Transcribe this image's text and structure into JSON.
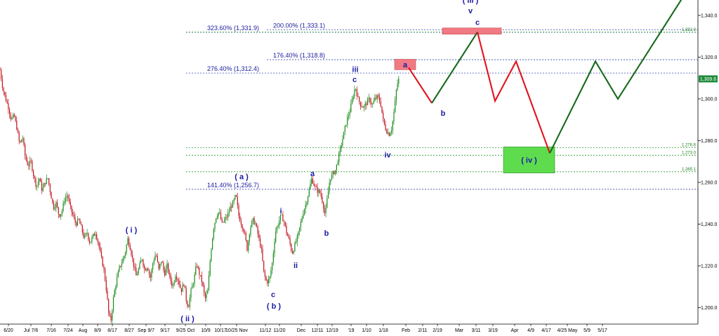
{
  "chart_data": {
    "type": "line",
    "ylim": [
      1185,
      1350
    ],
    "y_ticks": [
      "1,200.0",
      "1,220.0",
      "1,240.0",
      "1,260.0",
      "1,280.0",
      "1,300.0",
      "1,320.0",
      "1,340.0"
    ],
    "y_tick_values": [
      1200,
      1220,
      1240,
      1260,
      1280,
      1300,
      1320,
      1340
    ],
    "x_ticks": [
      "6/20",
      "Jul 7/6",
      "7/16",
      "7/24",
      "Aug",
      "8/9",
      "8/17",
      "8/27",
      "Sep 9/7",
      "9/17",
      "9/25 Oct",
      "10/9",
      "10/17",
      "10/25 Nov",
      "11/12",
      "11/20",
      "Dec",
      "12/11",
      "12/19",
      "'19",
      "1/10",
      "1/18",
      "Feb",
      "2/11",
      "2/19",
      "Mar",
      "3/11",
      "3/19",
      "Apr",
      "4/9",
      "4/17",
      "4/25 May",
      "5/9",
      "5/17"
    ],
    "last_price": "1,309.6",
    "price_history": [
      [
        0,
        1314
      ],
      [
        4,
        1305
      ],
      [
        8,
        1300
      ],
      [
        12,
        1296
      ],
      [
        16,
        1290
      ],
      [
        20,
        1292
      ],
      [
        24,
        1286
      ],
      [
        28,
        1278
      ],
      [
        32,
        1282
      ],
      [
        36,
        1272
      ],
      [
        40,
        1268
      ],
      [
        44,
        1270
      ],
      [
        48,
        1263
      ],
      [
        52,
        1258
      ],
      [
        56,
        1262
      ],
      [
        60,
        1256
      ],
      [
        64,
        1260
      ],
      [
        68,
        1262
      ],
      [
        72,
        1255
      ],
      [
        76,
        1248
      ],
      [
        80,
        1250
      ],
      [
        84,
        1244
      ],
      [
        88,
        1246
      ],
      [
        92,
        1252
      ],
      [
        96,
        1254
      ],
      [
        100,
        1248
      ],
      [
        104,
        1244
      ],
      [
        108,
        1240
      ],
      [
        112,
        1242
      ],
      [
        116,
        1238
      ],
      [
        120,
        1233
      ],
      [
        124,
        1236
      ],
      [
        128,
        1231
      ],
      [
        132,
        1234
      ],
      [
        136,
        1236
      ],
      [
        140,
        1231
      ],
      [
        144,
        1224
      ],
      [
        148,
        1218
      ],
      [
        152,
        1207
      ],
      [
        155,
        1196
      ],
      [
        158,
        1194
      ],
      [
        162,
        1206
      ],
      [
        166,
        1213
      ],
      [
        170,
        1219
      ],
      [
        174,
        1222
      ],
      [
        178,
        1226
      ],
      [
        182,
        1233
      ],
      [
        186,
        1228
      ],
      [
        190,
        1221
      ],
      [
        194,
        1215
      ],
      [
        198,
        1219
      ],
      [
        202,
        1224
      ],
      [
        206,
        1218
      ],
      [
        210,
        1220
      ],
      [
        214,
        1214
      ],
      [
        218,
        1222
      ],
      [
        222,
        1226
      ],
      [
        226,
        1218
      ],
      [
        230,
        1223
      ],
      [
        234,
        1216
      ],
      [
        238,
        1220
      ],
      [
        242,
        1214
      ],
      [
        246,
        1210
      ],
      [
        250,
        1216
      ],
      [
        254,
        1213
      ],
      [
        258,
        1208
      ],
      [
        262,
        1212
      ],
      [
        265,
        1204
      ],
      [
        268,
        1200
      ],
      [
        272,
        1208
      ],
      [
        276,
        1213
      ],
      [
        280,
        1221
      ],
      [
        284,
        1216
      ],
      [
        288,
        1212
      ],
      [
        292,
        1204
      ],
      [
        296,
        1208
      ],
      [
        300,
        1226
      ],
      [
        304,
        1238
      ],
      [
        308,
        1244
      ],
      [
        312,
        1246
      ],
      [
        316,
        1240
      ],
      [
        320,
        1242
      ],
      [
        324,
        1244
      ],
      [
        328,
        1248
      ],
      [
        332,
        1250
      ],
      [
        336,
        1254
      ],
      [
        340,
        1244
      ],
      [
        344,
        1240
      ],
      [
        348,
        1236
      ],
      [
        352,
        1228
      ],
      [
        356,
        1238
      ],
      [
        360,
        1242
      ],
      [
        364,
        1240
      ],
      [
        368,
        1234
      ],
      [
        372,
        1228
      ],
      [
        376,
        1216
      ],
      [
        380,
        1212
      ],
      [
        384,
        1214
      ],
      [
        388,
        1222
      ],
      [
        392,
        1236
      ],
      [
        396,
        1240
      ],
      [
        400,
        1244
      ],
      [
        404,
        1242
      ],
      [
        408,
        1236
      ],
      [
        412,
        1232
      ],
      [
        416,
        1226
      ],
      [
        420,
        1230
      ],
      [
        424,
        1234
      ],
      [
        428,
        1240
      ],
      [
        432,
        1246
      ],
      [
        436,
        1250
      ],
      [
        440,
        1256
      ],
      [
        444,
        1262
      ],
      [
        448,
        1258
      ],
      [
        452,
        1256
      ],
      [
        456,
        1255
      ],
      [
        460,
        1250
      ],
      [
        463,
        1244
      ],
      [
        466,
        1252
      ],
      [
        470,
        1262
      ],
      [
        474,
        1264
      ],
      [
        478,
        1266
      ],
      [
        482,
        1272
      ],
      [
        486,
        1278
      ],
      [
        490,
        1284
      ],
      [
        494,
        1290
      ],
      [
        498,
        1294
      ],
      [
        502,
        1300
      ],
      [
        506,
        1306
      ],
      [
        510,
        1300
      ],
      [
        514,
        1297
      ],
      [
        518,
        1296
      ],
      [
        522,
        1298
      ],
      [
        526,
        1300
      ],
      [
        530,
        1297
      ],
      [
        534,
        1300
      ],
      [
        538,
        1301
      ],
      [
        542,
        1298
      ],
      [
        546,
        1289
      ],
      [
        550,
        1285
      ],
      [
        554,
        1283
      ],
      [
        558,
        1286
      ],
      [
        562,
        1296
      ],
      [
        565,
        1306
      ],
      [
        568,
        1309.6
      ]
    ],
    "projection": [
      {
        "color": "#e0141e",
        "points": [
          [
            582,
            1315
          ],
          [
            615,
            1298
          ]
        ]
      },
      {
        "color": "#17681b",
        "points": [
          [
            615,
            1298
          ],
          [
            680,
            1332
          ]
        ]
      },
      {
        "color": "#e0141e",
        "points": [
          [
            680,
            1332
          ],
          [
            705,
            1299
          ],
          [
            735,
            1318
          ],
          [
            783,
            1274
          ]
        ]
      },
      {
        "color": "#17681b",
        "points": [
          [
            783,
            1274
          ],
          [
            848,
            1318
          ],
          [
            880,
            1300
          ],
          [
            975,
            1350
          ]
        ]
      }
    ],
    "fib_levels": [
      {
        "label": "323.60% (1,331.9)",
        "value": 1331.9,
        "x_start": 265,
        "label_x": 332,
        "color": "#3a4ab4"
      },
      {
        "label": "200.00% (1,333.1)",
        "value": 1333.1,
        "x_start": 380,
        "label_x": 426,
        "color": "#3a4ab4"
      },
      {
        "label": "176.40% (1,318.8)",
        "value": 1318.8,
        "x_start": 380,
        "label_x": 426,
        "color": "#3a4ab4"
      },
      {
        "label": "276.40% (1,312.4)",
        "value": 1312.4,
        "x_start": 265,
        "label_x": 332,
        "color": "#3a4ab4"
      },
      {
        "label": "141.40% (1,256.7)",
        "value": 1256.7,
        "x_start": 265,
        "label_x": 332,
        "color": "#3a4ab4"
      }
    ],
    "support_levels": [
      {
        "label": "1,332.0",
        "value": 1332.0
      },
      {
        "label": "1,276.6",
        "value": 1276.6
      },
      {
        "label": "1,273.0",
        "value": 1273.0
      },
      {
        "label": "1,265.1",
        "value": 1265.1
      }
    ],
    "zones": [
      {
        "label": "a",
        "color": "#f07a84",
        "x": [
          562,
          592
        ],
        "y": [
          1314,
          1319
        ]
      },
      {
        "label": "",
        "color": "#f07a84",
        "x": [
          630,
          714
        ],
        "y": [
          1331,
          1334
        ]
      },
      {
        "label": "( iv )",
        "color": "#5fdc4e",
        "x": [
          717,
          790
        ],
        "y": [
          1264.5,
          1277
        ]
      }
    ],
    "wave_labels": [
      {
        "text": "( iii )",
        "x": 670,
        "y": 1346
      },
      {
        "text": "v",
        "x": 670,
        "y": 1341
      },
      {
        "text": "c",
        "x": 680,
        "y": 1335.5
      },
      {
        "text": "iii",
        "x": 506,
        "y": 1313
      },
      {
        "text": "c",
        "x": 505,
        "y": 1308
      },
      {
        "text": "b",
        "x": 631,
        "y": 1292
      },
      {
        "text": "iv",
        "x": 552,
        "y": 1272
      },
      {
        "text": "( a )",
        "x": 344,
        "y": 1261.5
      },
      {
        "text": "a",
        "x": 445,
        "y": 1263
      },
      {
        "text": "i",
        "x": 400,
        "y": 1245
      },
      {
        "text": "b",
        "x": 465,
        "y": 1234.5
      },
      {
        "text": "( i )",
        "x": 187,
        "y": 1236
      },
      {
        "text": "ii",
        "x": 421,
        "y": 1219
      },
      {
        "text": "c",
        "x": 389,
        "y": 1205
      },
      {
        "text": "( b )",
        "x": 390,
        "y": 1199.5
      },
      {
        "text": "( ii )",
        "x": 267,
        "y": 1193.5
      }
    ]
  }
}
